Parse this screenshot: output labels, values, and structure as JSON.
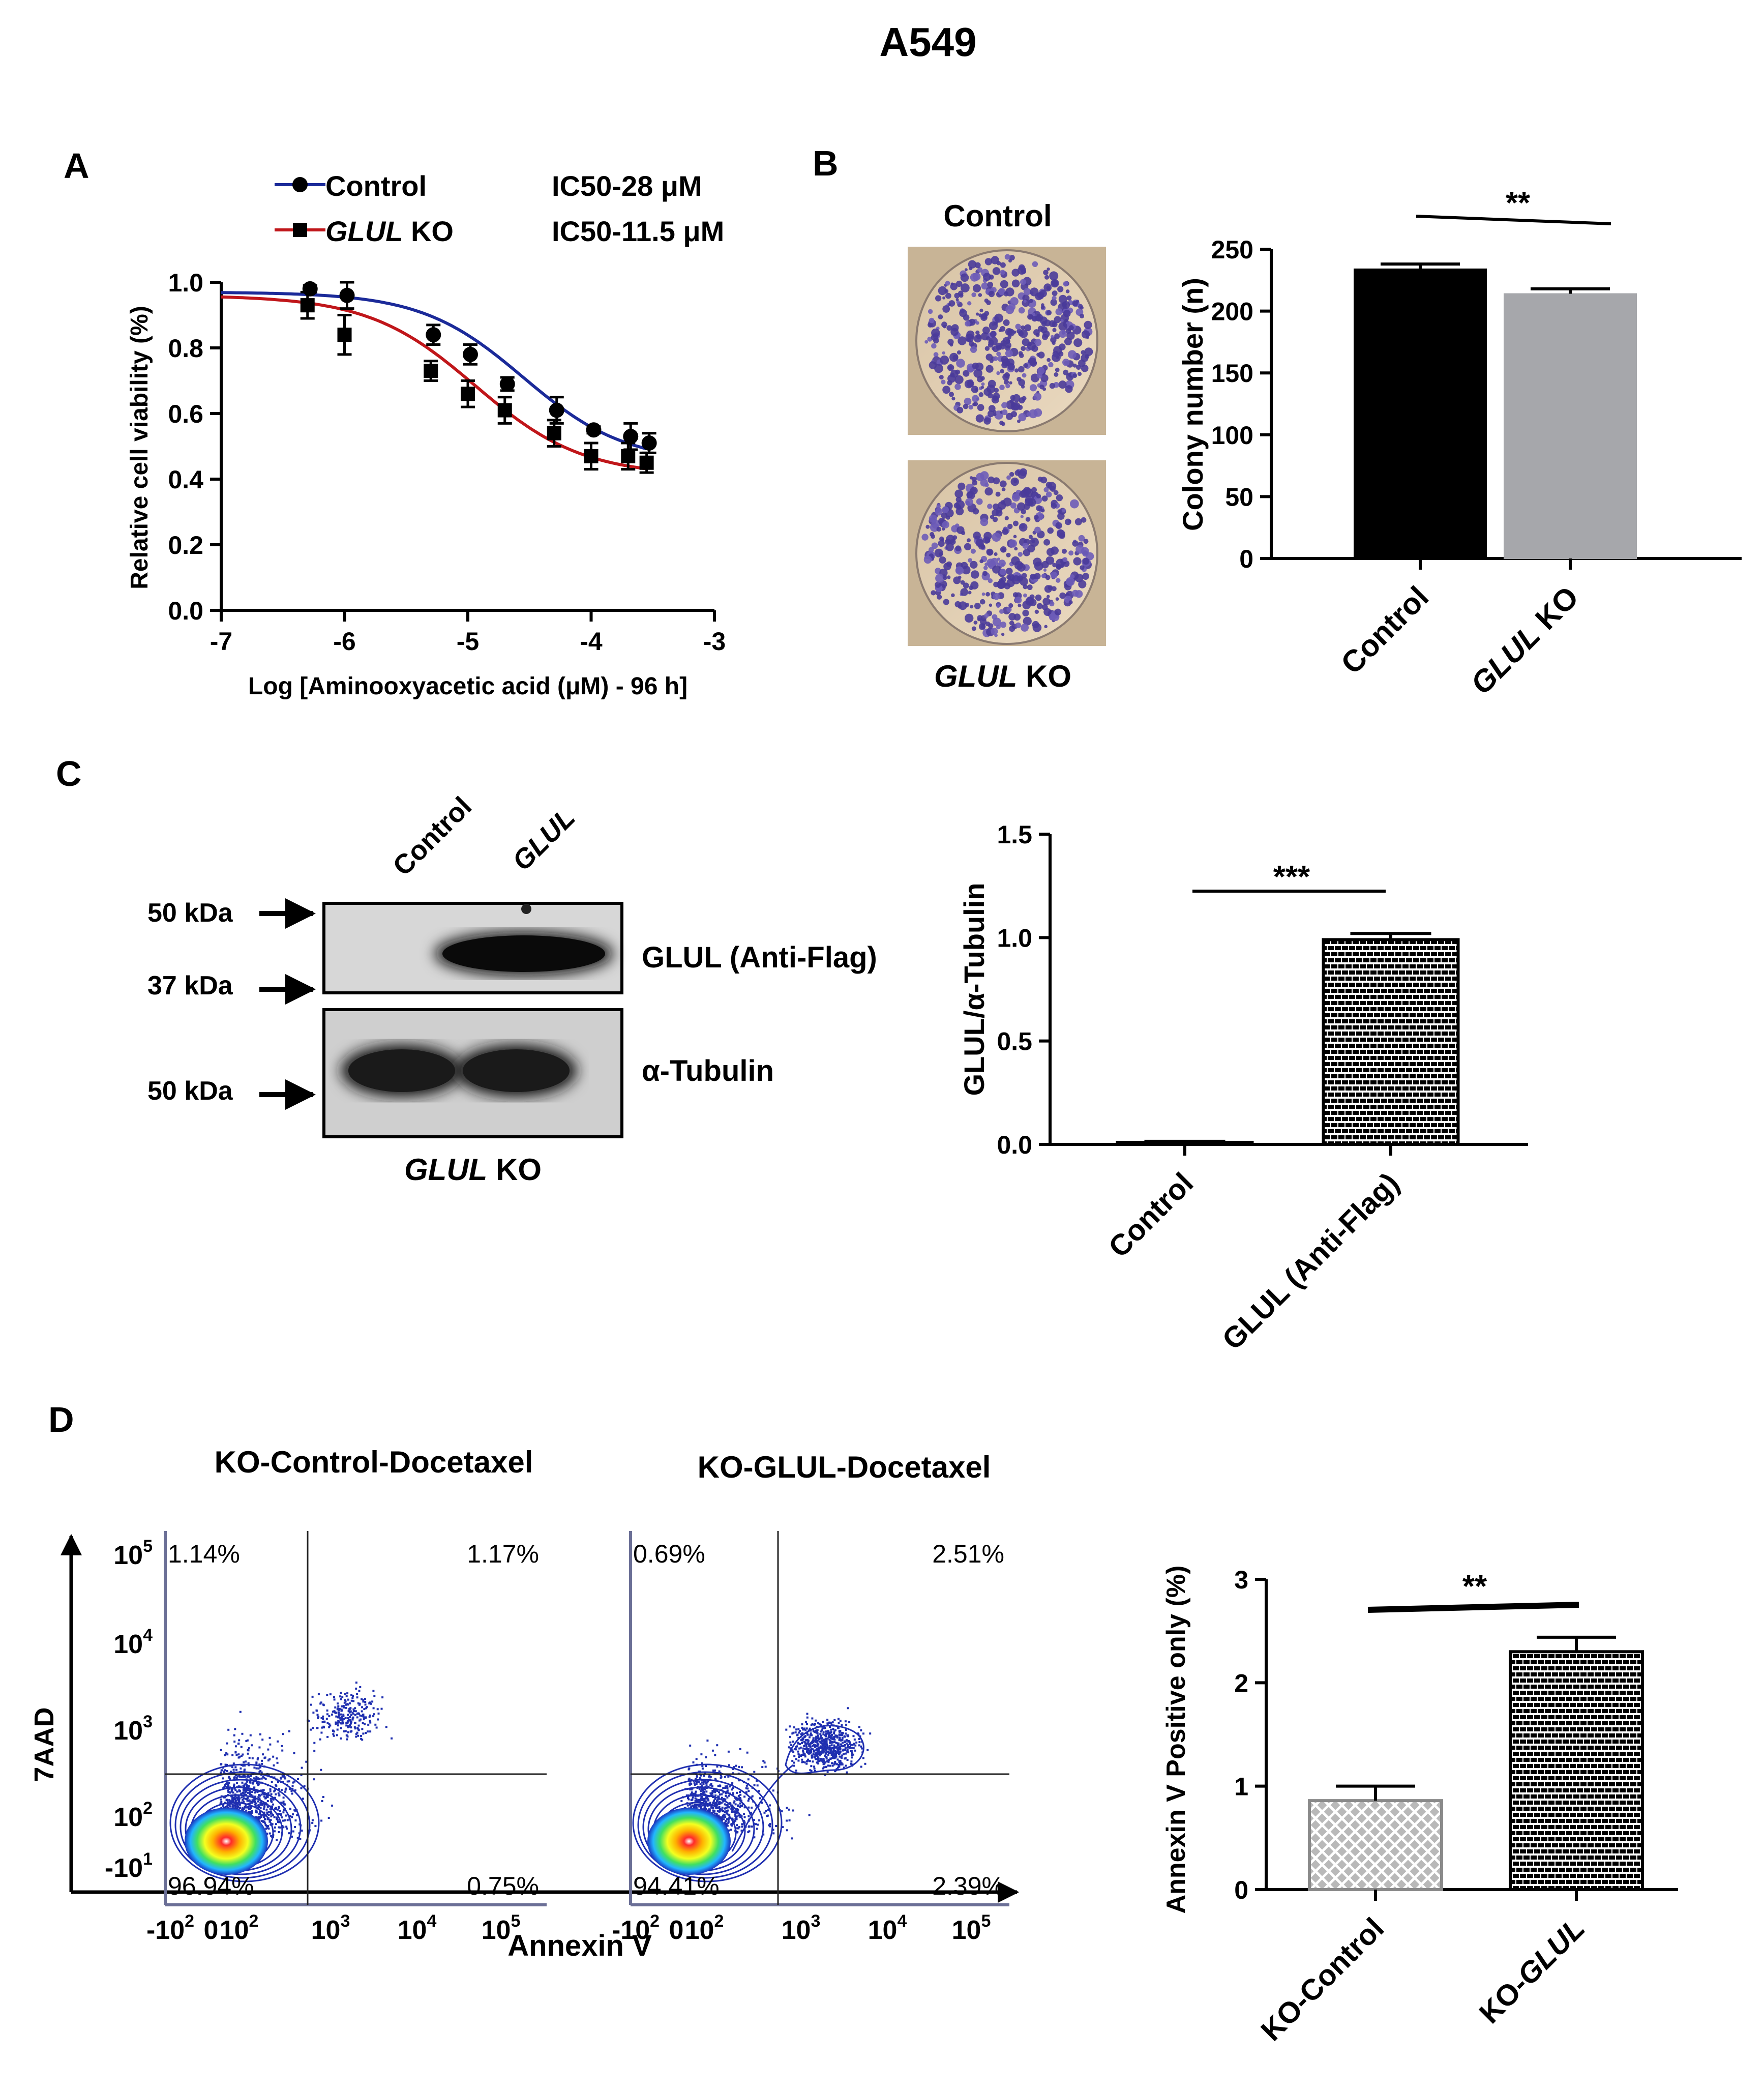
{
  "figure_title": "A549",
  "panel_labels": {
    "a": "A",
    "b": "B",
    "c": "C",
    "d": "D"
  },
  "colors": {
    "control_line": "#1b2a99",
    "ko_line": "#c0161a",
    "control_bar": "#000000",
    "ko_bar": "#a6a7ab",
    "grid": "#000000"
  },
  "panel_a": {
    "legend": [
      {
        "marker": "circle",
        "name_prefix": "",
        "name_italic": "",
        "name": "Control",
        "ic50": "IC50-28 μM"
      },
      {
        "marker": "square",
        "name_prefix": "",
        "name_italic": "GLUL",
        "name": " KO",
        "ic50": "IC50-11.5 μM"
      }
    ],
    "ylabel": "Relative cell viability (%)",
    "xlabel": "Log [Aminooxyacetic acid (μM) - 96 h]",
    "xticks": [
      "-7",
      "-6",
      "-5",
      "-4",
      "-3"
    ],
    "yticks": [
      "0.0",
      "0.2",
      "0.4",
      "0.6",
      "0.8",
      "1.0"
    ]
  },
  "panel_b": {
    "dish_labels": {
      "top": "Control",
      "bottom_italic": "GLUL",
      "bottom": " KO"
    },
    "significance": "**",
    "ylabel": "Colony number (n)",
    "yticks": [
      "0",
      "50",
      "100",
      "150",
      "200",
      "250"
    ],
    "categories": [
      {
        "prefix": "",
        "italic": "",
        "text": "Control"
      },
      {
        "prefix": "",
        "italic": "GLUL",
        "text": " KO"
      }
    ]
  },
  "panel_c": {
    "lane_labels": [
      {
        "italic": "",
        "text": "Control"
      },
      {
        "italic": "GLUL",
        "text": ""
      }
    ],
    "markers": [
      "50 kDa",
      "37 kDa",
      "50 kDa"
    ],
    "bands": [
      "GLUL (Anti-Flag)",
      "α-Tubulin"
    ],
    "blot_caption": {
      "italic": "GLUL",
      "text": " KO"
    },
    "significance": "***",
    "ylabel": "GLUL/α-Tubulin",
    "yticks": [
      "0.0",
      "0.5",
      "1.0",
      "1.5"
    ],
    "categories": [
      {
        "prefix": "",
        "italic": "",
        "text": "Control"
      },
      {
        "prefix": "",
        "italic": "",
        "text": "GLUL (Anti-Flag)"
      }
    ]
  },
  "panel_d": {
    "plot_titles": [
      "KO-Control-Docetaxel",
      "KO-GLUL-Docetaxel"
    ],
    "y_axis_label": "7AAD",
    "x_axis_label": "Annexin V",
    "flow_left": {
      "q_ul": "1.14%",
      "q_ur": "1.17%",
      "q_ll": "96.94%",
      "q_lr": "0.75%"
    },
    "flow_right": {
      "q_ul": "0.69%",
      "q_ur": "2.51%",
      "q_ll": "94.41%",
      "q_lr": "2.39%"
    },
    "y_ticks": [
      {
        "base": "10",
        "exp": "5"
      },
      {
        "base": "10",
        "exp": "4"
      },
      {
        "base": "10",
        "exp": "3"
      },
      {
        "base": "10",
        "exp": "2"
      },
      {
        "base": "-10",
        "exp": "1"
      }
    ],
    "x_ticks": [
      {
        "base": "-10",
        "exp": "2"
      },
      {
        "base": "0",
        "exp": ""
      },
      {
        "base": "10",
        "exp": "2"
      },
      {
        "base": "10",
        "exp": "3"
      },
      {
        "base": "10",
        "exp": "4"
      },
      {
        "base": "10",
        "exp": "5"
      }
    ],
    "significance": "**",
    "ylabel": "Annexin V Positive only (%)",
    "yticks": [
      "0",
      "1",
      "2",
      "3"
    ],
    "categories": [
      {
        "prefix": "KO-",
        "italic": "",
        "text": "Control"
      },
      {
        "prefix": "KO-",
        "italic": "GLUL",
        "text": ""
      }
    ]
  },
  "chart_data": [
    {
      "id": "A",
      "type": "line",
      "title": "",
      "xlabel": "Log [Aminooxyacetic acid (μM) - 96 h]",
      "ylabel": "Relative cell viability (%)",
      "xlim": [
        -7,
        -3
      ],
      "ylim": [
        0,
        1.0
      ],
      "series": [
        {
          "name": "Control",
          "color": "#1b2a99",
          "marker": "circle",
          "ic50": "IC50-28 μM",
          "x": [
            -6.3,
            -6.0,
            -5.3,
            -5.0,
            -4.7,
            -4.3,
            -4.0,
            -3.7,
            -3.55
          ],
          "y": [
            0.98,
            0.96,
            0.84,
            0.78,
            0.69,
            0.61,
            0.55,
            0.53,
            0.51
          ],
          "err": [
            0.01,
            0.04,
            0.03,
            0.03,
            0.02,
            0.04,
            0.01,
            0.04,
            0.03
          ]
        },
        {
          "name": "GLUL KO",
          "color": "#c0161a",
          "marker": "square",
          "ic50": "IC50-11.5 μM",
          "x": [
            -6.3,
            -6.0,
            -5.3,
            -5.0,
            -4.7,
            -4.3,
            -4.0,
            -3.7,
            -3.55
          ],
          "y": [
            0.93,
            0.84,
            0.73,
            0.66,
            0.61,
            0.54,
            0.47,
            0.47,
            0.45
          ],
          "err": [
            0.04,
            0.06,
            0.03,
            0.04,
            0.04,
            0.04,
            0.04,
            0.04,
            0.03
          ]
        }
      ]
    },
    {
      "id": "B",
      "type": "bar",
      "categories": [
        "Control",
        "GLUL KO"
      ],
      "values": [
        234,
        214
      ],
      "errors": [
        4,
        4
      ],
      "ylabel": "Colony number (n)",
      "ylim": [
        0,
        250
      ],
      "significance": "**"
    },
    {
      "id": "C",
      "type": "bar",
      "categories": [
        "Control",
        "GLUL (Anti-Flag)"
      ],
      "values": [
        0.01,
        0.99
      ],
      "errors": [
        0.005,
        0.03
      ],
      "ylabel": "GLUL/α-Tubulin",
      "ylim": [
        0,
        1.5
      ],
      "significance": "***"
    },
    {
      "id": "D",
      "type": "bar",
      "categories": [
        "KO-Control",
        "KO-GLUL"
      ],
      "values": [
        0.86,
        2.3
      ],
      "errors": [
        0.14,
        0.14
      ],
      "ylabel": "Annexin V Positive only (%)",
      "ylim": [
        0,
        3
      ],
      "significance": "**"
    }
  ]
}
